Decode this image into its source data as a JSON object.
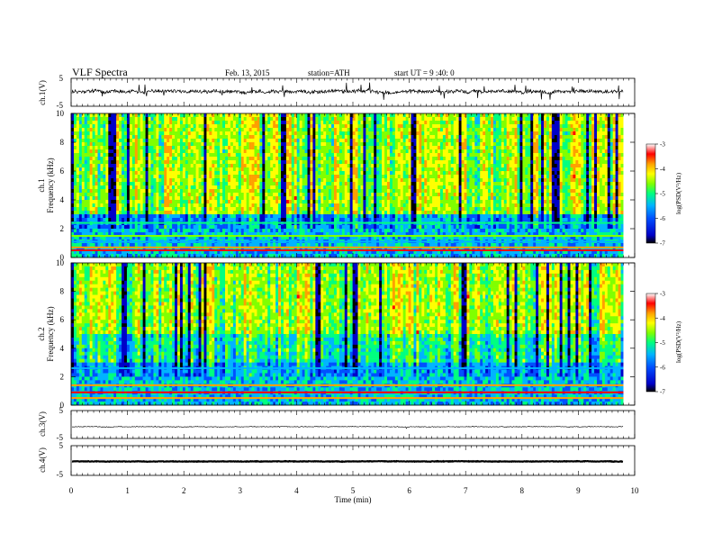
{
  "header": {
    "title": "VLF  Spectra",
    "date": "Feb. 13, 2015",
    "station": "station=ATH",
    "start": "start  UT  =   9 :40: 0"
  },
  "chart_data": [
    {
      "type": "line",
      "name": "ch.1(V)",
      "ylabel": "ch.1(V)",
      "yticks": [
        "5",
        "-5"
      ],
      "ylim": [
        -5,
        5
      ],
      "xlim": [
        0,
        10
      ],
      "data_end_min": 9.8,
      "baseline": 0.3,
      "noise": "strong spiky"
    },
    {
      "type": "heatmap",
      "name": "ch.1 spectrogram",
      "ylabel": "ch.1 Frequency (kHz)",
      "ylabel_lines": [
        "ch.1",
        "Frequency (kHz)"
      ],
      "yticks": [
        "0",
        "2",
        "4",
        "6",
        "8",
        "10"
      ],
      "ylim": [
        0,
        10
      ],
      "xlim": [
        0,
        10
      ],
      "colorbar": {
        "label": "log(PSD(V²/Hz)",
        "ticks": [
          "-3",
          "-4",
          "-5",
          "-6",
          "-7"
        ],
        "range": [
          -7,
          -3
        ]
      }
    },
    {
      "type": "heatmap",
      "name": "ch.2 spectrogram",
      "ylabel": "ch.2 Frequency (kHz)",
      "ylabel_lines": [
        "ch.2",
        "Frequency (kHz)"
      ],
      "yticks": [
        "0",
        "2",
        "4",
        "6",
        "8",
        "10"
      ],
      "ylim": [
        0,
        10
      ],
      "xlim": [
        0,
        10
      ],
      "colorbar": {
        "label": "log(PSD(V²/Hz)",
        "ticks": [
          "-3",
          "-4",
          "-5",
          "-6",
          "-7"
        ],
        "range": [
          -7,
          -3
        ]
      }
    },
    {
      "type": "line",
      "name": "ch.3(V)",
      "ylabel": "ch.3(V)",
      "yticks": [
        "5",
        "-5"
      ],
      "ylim": [
        -5,
        5
      ],
      "xlim": [
        0,
        10
      ],
      "data_end_min": 9.8,
      "baseline": -0.8,
      "noise": "low"
    },
    {
      "type": "line",
      "name": "ch.4(V)",
      "ylabel": "ch.4(V)",
      "yticks": [
        "5",
        "-5"
      ],
      "ylim": [
        -5,
        5
      ],
      "xlim": [
        0,
        10
      ],
      "data_end_min": 9.8,
      "baseline": -0.3,
      "noise": "thick flat"
    }
  ],
  "xaxis": {
    "label": "Time  (min)",
    "ticks": [
      "0",
      "1",
      "2",
      "3",
      "4",
      "5",
      "6",
      "7",
      "8",
      "9",
      "10"
    ],
    "range": [
      0,
      10
    ]
  },
  "colors": {
    "colormap": [
      "#000000",
      "#0000c8",
      "#0050ff",
      "#00b4ff",
      "#00ff80",
      "#80ff00",
      "#ffff00",
      "#ffa000",
      "#ff0000",
      "#ffffff"
    ],
    "trace": "#000000"
  }
}
